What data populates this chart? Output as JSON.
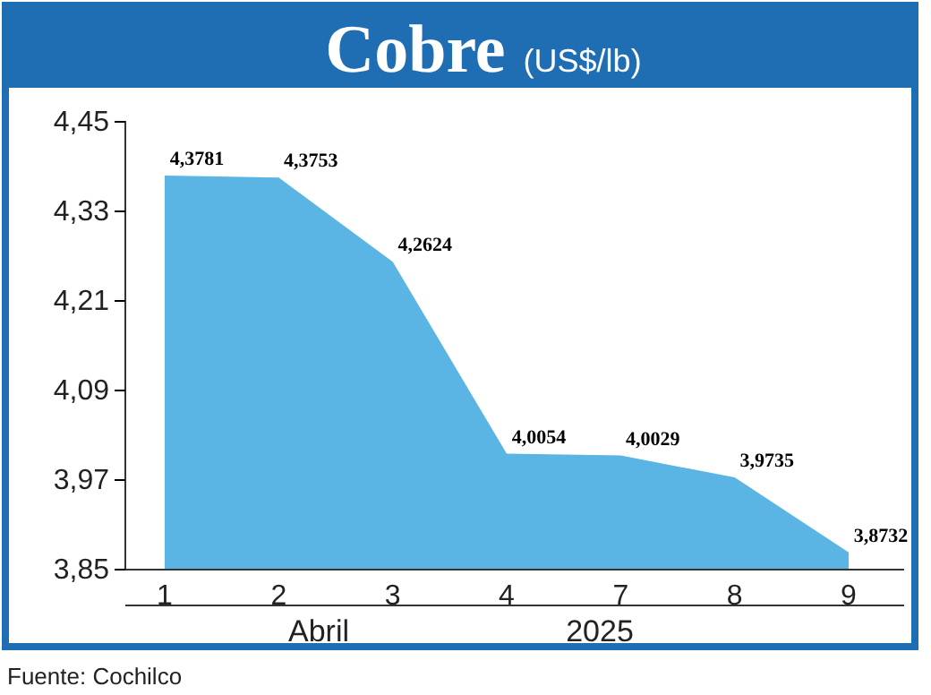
{
  "chart_data": {
    "type": "area",
    "title": "Cobre",
    "subtitle": "(US$/lb)",
    "categories": [
      "1",
      "2",
      "3",
      "4",
      "7",
      "8",
      "9"
    ],
    "series": [
      {
        "color": "#5ab4e4",
        "values": [
          4.3781,
          4.3753,
          4.2624,
          4.0054,
          4.0029,
          3.9735,
          3.8732
        ],
        "value_labels": [
          "4,3781",
          "4,3753",
          "4,2624",
          "4,0054",
          "4,0029",
          "3,9735",
          "3,8732"
        ]
      }
    ],
    "ylim": [
      3.85,
      4.45
    ],
    "yticks": [
      {
        "value": 3.85,
        "label": "3,85"
      },
      {
        "value": 3.97,
        "label": "3,97"
      },
      {
        "value": 4.09,
        "label": "4,09"
      },
      {
        "value": 4.21,
        "label": "4,21"
      },
      {
        "value": 4.33,
        "label": "4,33"
      },
      {
        "value": 4.45,
        "label": "4,45"
      }
    ],
    "annotations": [
      "Abril",
      "2025",
      "Fuente: Cochilco"
    ]
  }
}
